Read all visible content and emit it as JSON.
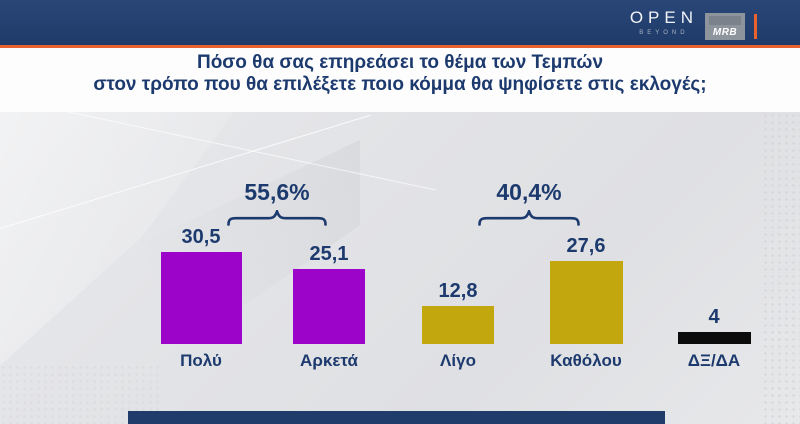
{
  "header": {
    "open_logo": "OPEN",
    "open_sub": "BEYOND",
    "mrb_logo": "MRB"
  },
  "title": {
    "line1": "Πόσο θα σας επηρεάσει το θέμα των Τεμπών",
    "line2": "στον τρόπο που θα επιλέξετε ποιο κόμμα θα ψηφίσετε στις εκλογές;"
  },
  "chart_data": {
    "type": "bar",
    "title": "Πόσο θα σας επηρεάσει το θέμα των Τεμπών στον τρόπο που θα επιλέξετε ποιο κόμμα θα ψηφίσετε στις εκλογές;",
    "categories": [
      "Πολύ",
      "Αρκετά",
      "Λίγο",
      "Καθόλου",
      "ΔΞ/ΔΑ"
    ],
    "values": [
      30.5,
      25.1,
      12.8,
      27.6,
      4
    ],
    "value_labels": [
      "30,5",
      "25,1",
      "12,8",
      "27,6",
      "4"
    ],
    "bar_colors": [
      "#9c04ca",
      "#9c04ca",
      "#c3a70f",
      "#c3a70f",
      "#0c0c0d"
    ],
    "groups": [
      {
        "label": "55,6%",
        "from": 0,
        "to": 1
      },
      {
        "label": "40,4%",
        "from": 2,
        "to": 3
      }
    ],
    "xlabel": "",
    "ylabel": "",
    "ylim": [
      0,
      35
    ],
    "grid": false,
    "legend": false,
    "accent_color": "#1d3a6e"
  }
}
